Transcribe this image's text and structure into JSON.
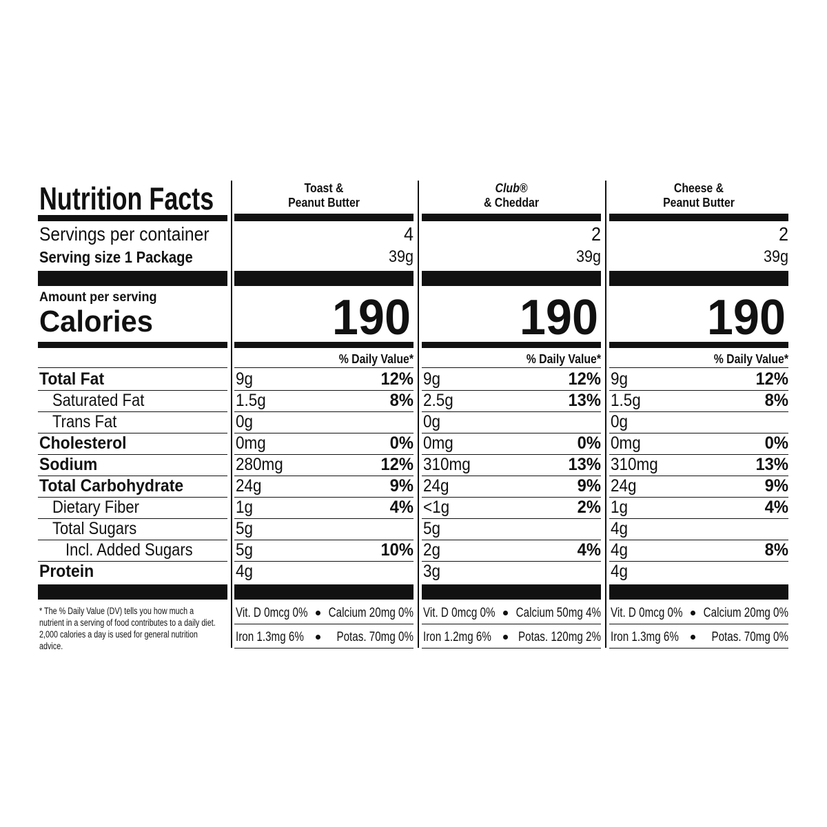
{
  "title": "Nutrition Facts",
  "labels": {
    "servings": "Servings per container",
    "serving_size": "Serving size 1 Package",
    "amount": "Amount per serving",
    "calories": "Calories",
    "dv_header": "% Daily Value*"
  },
  "nutrients": [
    "Total Fat",
    "Saturated Fat",
    "Trans Fat",
    "Cholesterol",
    "Sodium",
    "Total Carbohydrate",
    "Dietary Fiber",
    "Total Sugars",
    "Incl. Added Sugars",
    "Protein"
  ],
  "footnote": "* The % Daily Value (DV) tells you how much a nutrient in a serving of food contributes to a daily diet. 2,000 calories a day is used for general nutrition advice.",
  "products": [
    {
      "name": [
        "Toast &",
        "Peanut Butter"
      ],
      "servings": "4",
      "serving_size": "39g",
      "calories": "190",
      "rows": [
        [
          "9g",
          "12%"
        ],
        [
          "1.5g",
          "8%"
        ],
        [
          "0g"
        ],
        [
          "0mg",
          "0%"
        ],
        [
          "280mg",
          "12%"
        ],
        [
          "24g",
          "9%"
        ],
        [
          "1g",
          "4%"
        ],
        [
          "5g"
        ],
        [
          "5g",
          "10%"
        ],
        [
          "4g"
        ]
      ],
      "vitamins": [
        [
          "Vit. D 0mcg 0%",
          "Calcium 20mg 0%"
        ],
        [
          "Iron 1.3mg 6%",
          "Potas. 70mg 0%"
        ]
      ]
    },
    {
      "name": [
        "Club®",
        "& Cheddar"
      ],
      "servings": "2",
      "serving_size": "39g",
      "calories": "190",
      "rows": [
        [
          "9g",
          "12%"
        ],
        [
          "2.5g",
          "13%"
        ],
        [
          "0g"
        ],
        [
          "0mg",
          "0%"
        ],
        [
          "310mg",
          "13%"
        ],
        [
          "24g",
          "9%"
        ],
        [
          "<1g",
          "2%"
        ],
        [
          "5g"
        ],
        [
          "2g",
          "4%"
        ],
        [
          "3g"
        ]
      ],
      "vitamins": [
        [
          "Vit. D 0mcg 0%",
          "Calcium 50mg 4%"
        ],
        [
          "Iron 1.2mg 6%",
          "Potas. 120mg 2%"
        ]
      ]
    },
    {
      "name": [
        "Cheese &",
        "Peanut Butter"
      ],
      "servings": "2",
      "serving_size": "39g",
      "calories": "190",
      "rows": [
        [
          "9g",
          "12%"
        ],
        [
          "1.5g",
          "8%"
        ],
        [
          "0g"
        ],
        [
          "0mg",
          "0%"
        ],
        [
          "310mg",
          "13%"
        ],
        [
          "24g",
          "9%"
        ],
        [
          "1g",
          "4%"
        ],
        [
          "4g"
        ],
        [
          "4g",
          "8%"
        ],
        [
          "4g"
        ]
      ],
      "vitamins": [
        [
          "Vit. D 0mcg 0%",
          "Calcium 20mg 0%"
        ],
        [
          "Iron 1.3mg 6%",
          "Potas. 70mg 0%"
        ]
      ]
    }
  ]
}
